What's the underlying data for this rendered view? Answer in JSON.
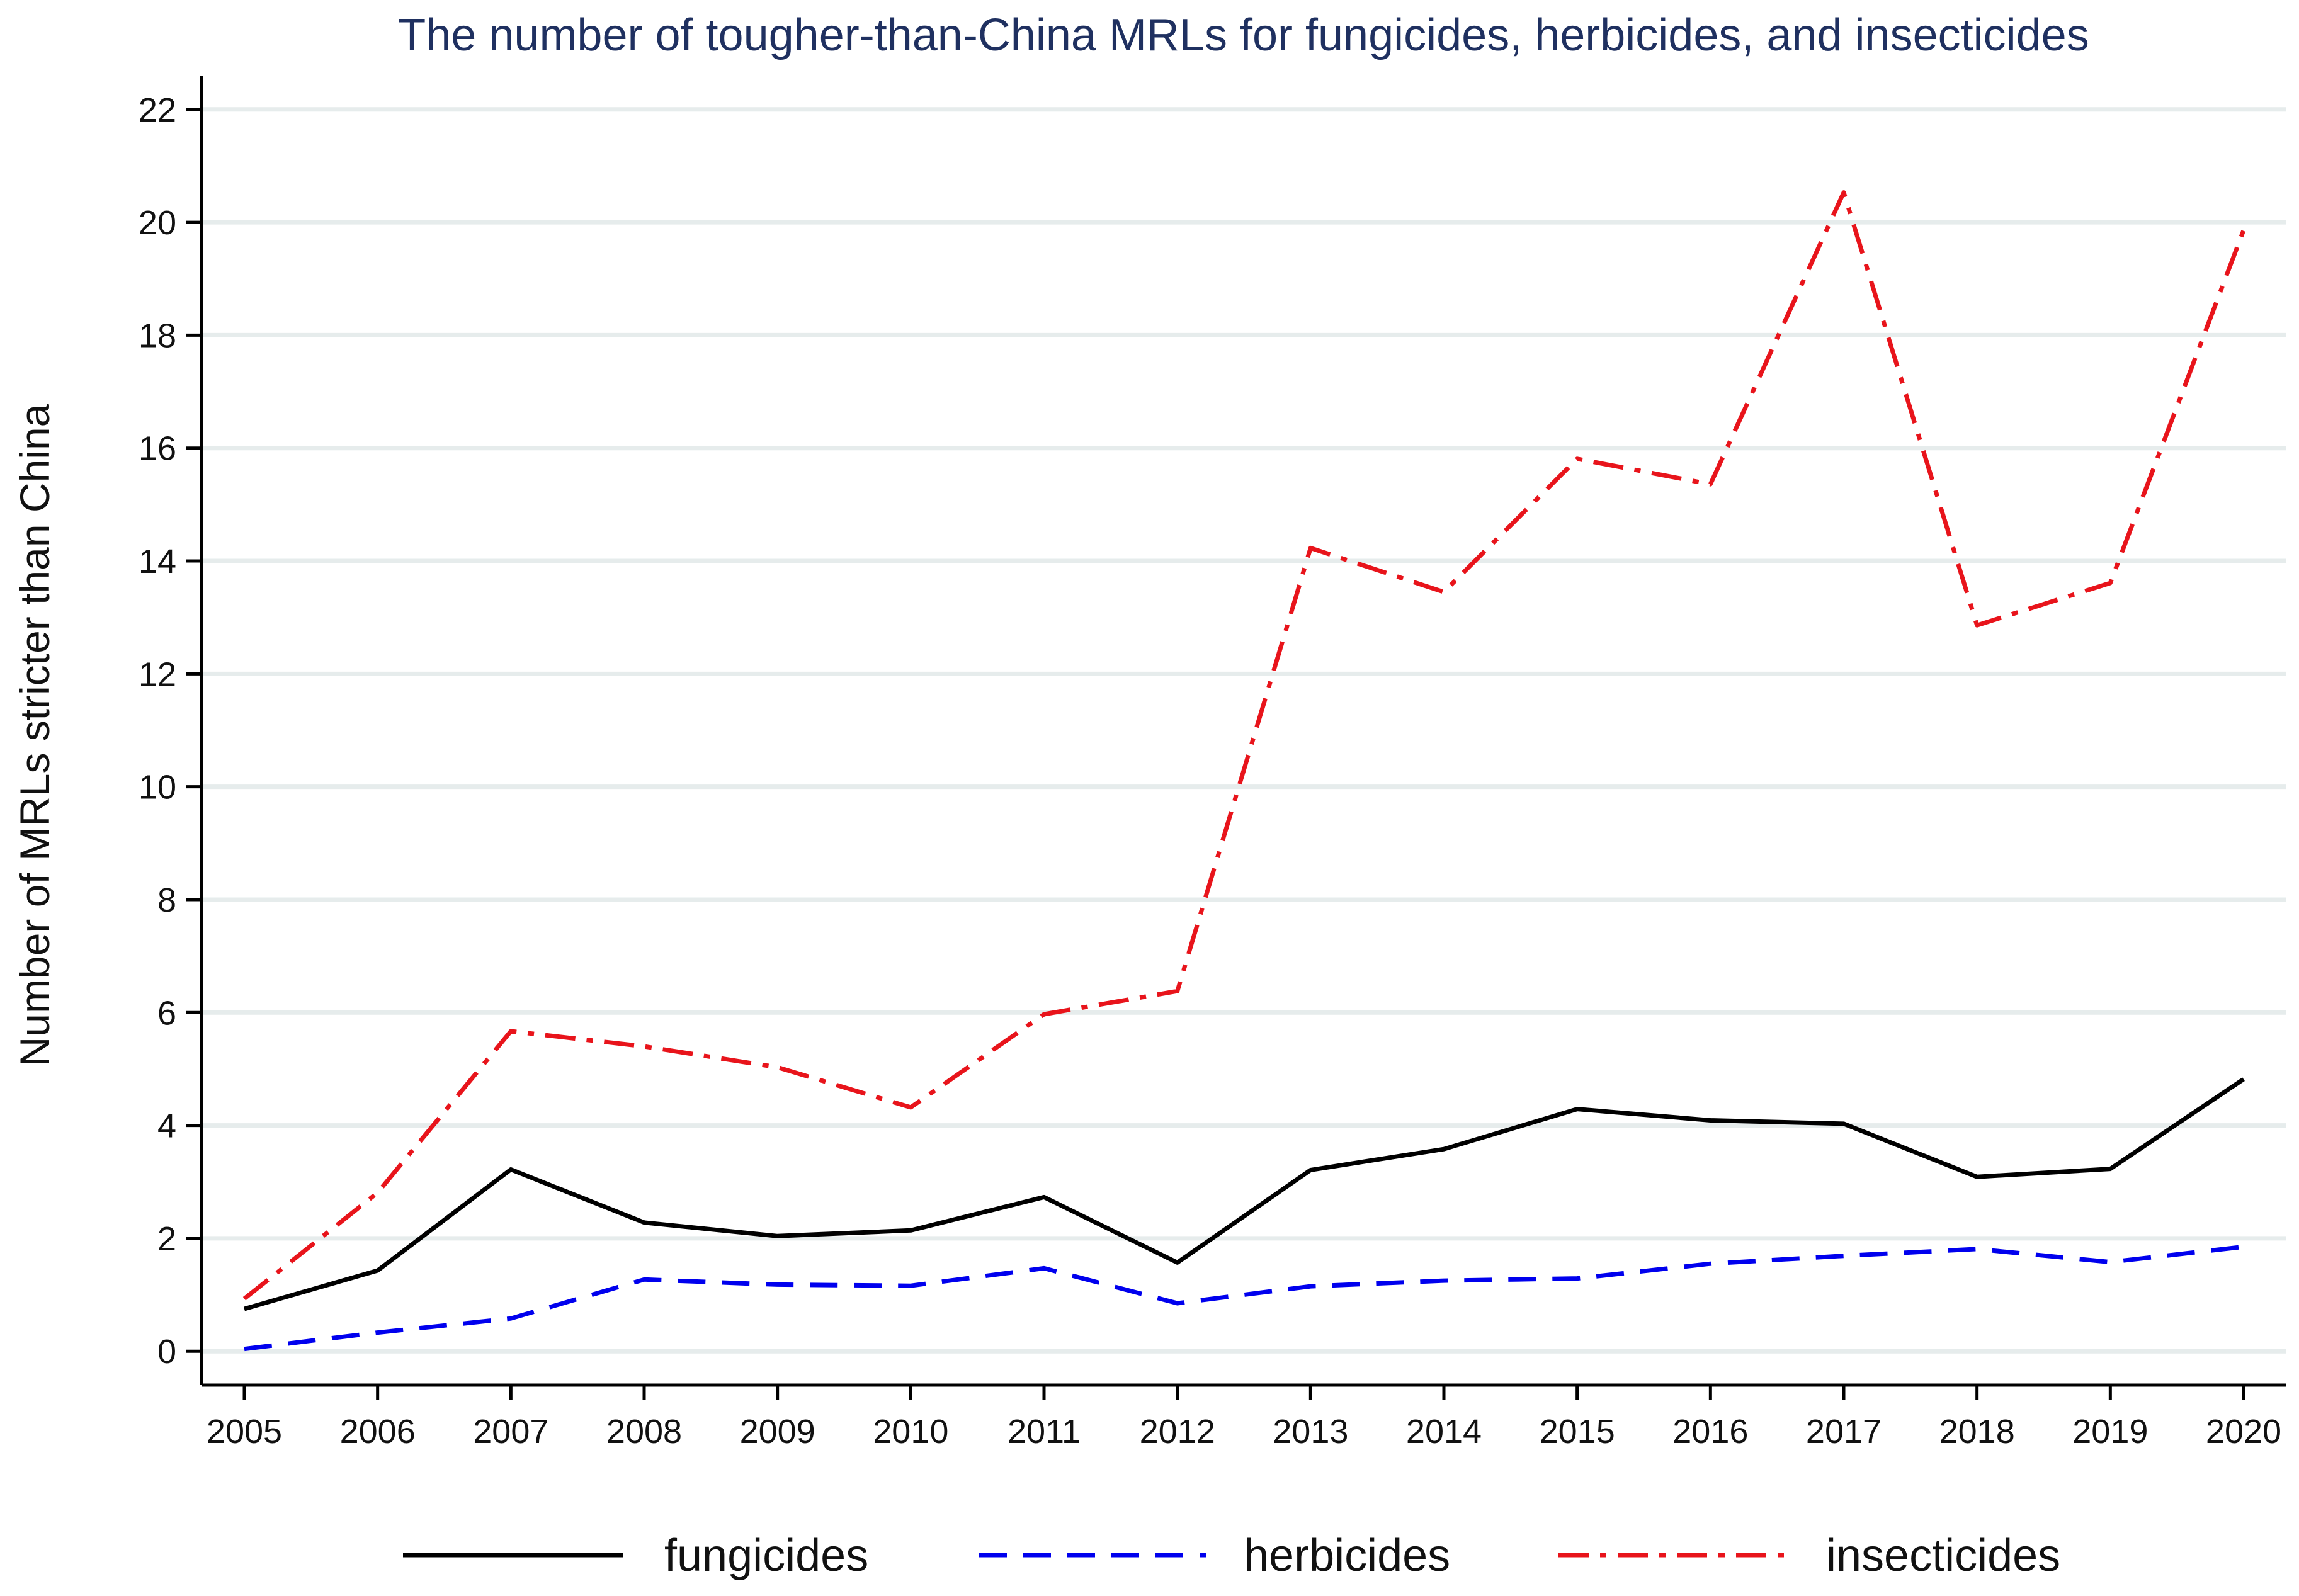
{
  "chart_data": {
    "type": "line",
    "title": "The number of tougher-than-China MRLs for fungicides, herbicides, and insecticides",
    "xlabel": "",
    "ylabel": "Number of MRLs stricter than China",
    "x": [
      2005,
      2006,
      2007,
      2008,
      2009,
      2010,
      2011,
      2012,
      2013,
      2014,
      2015,
      2016,
      2017,
      2018,
      2019,
      2020
    ],
    "ylim": [
      -0.6,
      22.6
    ],
    "yticks": [
      0,
      2,
      4,
      6,
      8,
      10,
      12,
      14,
      16,
      18,
      20,
      22
    ],
    "grid": true,
    "legend_position": "bottom",
    "series": [
      {
        "name": "fungicides",
        "color": "#000000",
        "dash": "solid",
        "values": [
          0.75,
          1.43,
          3.22,
          2.28,
          2.04,
          2.14,
          2.73,
          1.57,
          3.21,
          3.58,
          4.29,
          4.09,
          4.03,
          3.09,
          3.23,
          4.82
        ]
      },
      {
        "name": "herbicides",
        "color": "#0000ee",
        "dash": "dashed",
        "values": [
          0.04,
          0.33,
          0.58,
          1.27,
          1.18,
          1.16,
          1.47,
          0.85,
          1.15,
          1.25,
          1.29,
          1.55,
          1.69,
          1.81,
          1.58,
          1.85
        ]
      },
      {
        "name": "insecticides",
        "color": "#e8141b",
        "dash": "dashdot",
        "values": [
          0.93,
          2.81,
          5.67,
          5.4,
          5.03,
          4.32,
          5.97,
          6.38,
          14.23,
          13.45,
          15.81,
          15.36,
          20.53,
          12.86,
          13.61,
          19.86
        ]
      }
    ]
  }
}
